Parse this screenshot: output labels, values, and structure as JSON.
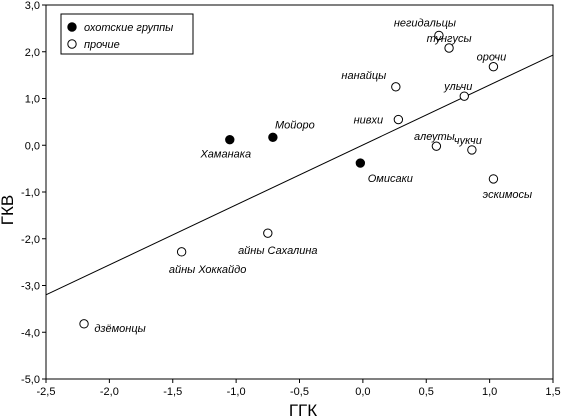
{
  "chart_data": {
    "type": "scatter",
    "xlabel": "ГГК",
    "ylabel": "ГКВ",
    "xlim": [
      -2.5,
      1.5
    ],
    "ylim": [
      -5.0,
      3.0
    ],
    "x_ticks": [
      -2.5,
      -2.0,
      -1.5,
      -1.0,
      -0.5,
      0.0,
      0.5,
      1.0,
      1.5
    ],
    "x_tick_labels": [
      "-2,5",
      "-2,0",
      "-1,5",
      "-1,0",
      "-0,5",
      "0,0",
      "0,5",
      "1,0",
      "1,5"
    ],
    "y_ticks": [
      3,
      2,
      1,
      0,
      -1,
      -2,
      -3,
      -4,
      -5
    ],
    "y_tick_labels": [
      "3,0",
      "2,0",
      "1,0",
      "0,0",
      "-1,0",
      "-2,0",
      "-3,0",
      "-4,0",
      "-5,0"
    ],
    "grid": false,
    "legend_position": "top-left",
    "series": [
      {
        "name": "охотские группы",
        "marker": "filled-circle",
        "color": "#000000",
        "points": [
          {
            "label": "Хаманака",
            "x": -1.05,
            "y": 0.12
          },
          {
            "label": "Мойоро",
            "x": -0.71,
            "y": 0.17
          },
          {
            "label": "Омисаки",
            "x": -0.02,
            "y": -0.38
          }
        ]
      },
      {
        "name": "прочие",
        "marker": "hollow-circle",
        "color": "#ffffff",
        "points": [
          {
            "label": "негидальцы",
            "x": 0.6,
            "y": 2.35
          },
          {
            "label": "тунгусы",
            "x": 0.68,
            "y": 2.08
          },
          {
            "label": "орочи",
            "x": 1.03,
            "y": 1.68
          },
          {
            "label": "нанайцы",
            "x": 0.26,
            "y": 1.25
          },
          {
            "label": "ульчи",
            "x": 0.8,
            "y": 1.05
          },
          {
            "label": "нивхи",
            "x": 0.28,
            "y": 0.55
          },
          {
            "label": "алеуты",
            "x": 0.58,
            "y": -0.02
          },
          {
            "label": "чукчи",
            "x": 0.86,
            "y": -0.1
          },
          {
            "label": "эскимосы",
            "x": 1.03,
            "y": -0.72
          },
          {
            "label": "айны Сахалина",
            "x": -0.75,
            "y": -1.88
          },
          {
            "label": "айны Хоккайдо",
            "x": -1.43,
            "y": -2.28
          },
          {
            "label": "дзёмонцы",
            "x": -2.2,
            "y": -3.82
          }
        ]
      }
    ],
    "regression_line": {
      "x": [
        -2.5,
        1.5
      ],
      "y": [
        -3.2,
        1.93
      ]
    }
  },
  "colors": {
    "axis": "#000000",
    "marker_fill": "#000000",
    "marker_hollow": "#ffffff"
  }
}
